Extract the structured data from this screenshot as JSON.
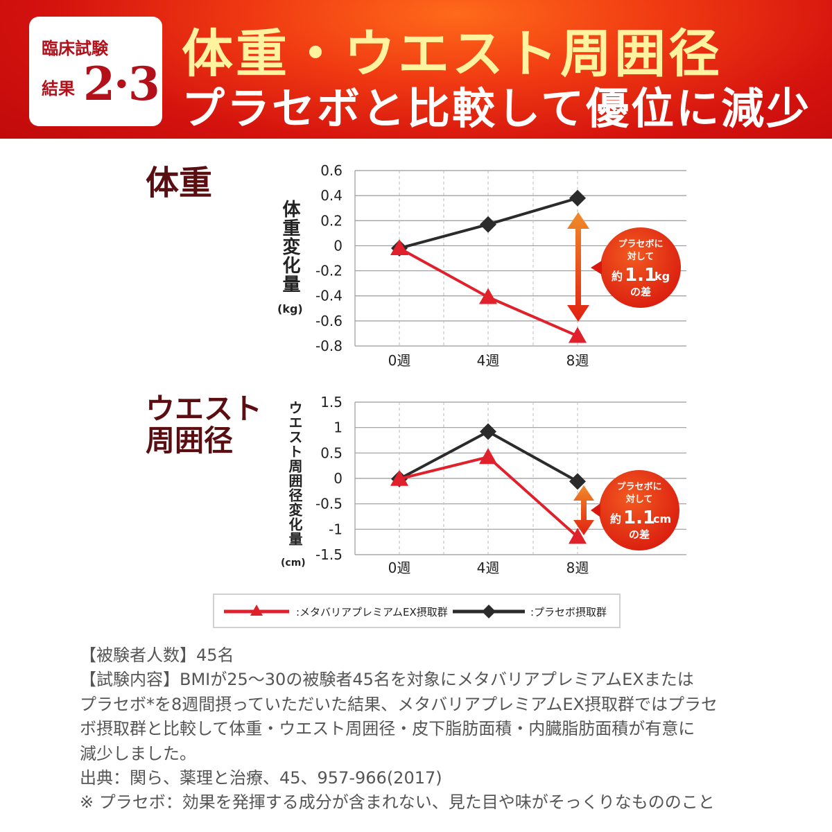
{
  "banner": {
    "badge_line1": "臨床試験",
    "badge_line2": "結果",
    "badge_number": "2·3",
    "headline_line1": "体重・ウエスト周囲径",
    "headline_line2": "プラセボと比較して優位に減少"
  },
  "colors": {
    "banner": "#d4120e",
    "metabarrier": "#e0202a",
    "placebo": "#2b2b2b",
    "callout": "#e8381a",
    "title": "#5a0e12"
  },
  "weight_section": {
    "title": "体重",
    "ylabel": "体重変化量",
    "unit": "(kg)",
    "callout": {
      "line1": "プラセボに",
      "line2": "対して",
      "prefix": "約",
      "value": "1.1",
      "unit": "kg",
      "suffix": "の差"
    }
  },
  "waist_section": {
    "title_line1": "ウエスト",
    "title_line2": "周囲径",
    "ylabel": "ウエスト周囲径変化量",
    "unit": "(cm)",
    "callout": {
      "line1": "プラセボに",
      "line2": "対して",
      "prefix": "約",
      "value": "1.1",
      "unit": "cm",
      "suffix": "の差"
    }
  },
  "legend": {
    "metabarrier": ":メタバリアプレミアムEX摂取群",
    "placebo": ":プラセボ摂取群"
  },
  "chart_data": [
    {
      "type": "line",
      "categories": [
        "0週",
        "4週",
        "8週"
      ],
      "ylim": [
        -0.8,
        0.6
      ],
      "yticks": [
        "0.6",
        "0.4",
        "0.2",
        "0",
        "-0.2",
        "-0.4",
        "-0.6",
        "-0.8"
      ],
      "grid": true,
      "series": [
        {
          "name": ":メタバリアプレミアムEX摂取群",
          "values": [
            -0.02,
            -0.41,
            -0.72
          ],
          "marker": "triangle"
        },
        {
          "name": ":プラセボ摂取群",
          "values": [
            -0.02,
            0.17,
            0.38
          ],
          "marker": "diamond"
        }
      ]
    },
    {
      "type": "line",
      "categories": [
        "0週",
        "4週",
        "8週"
      ],
      "ylim": [
        -1.5,
        1.5
      ],
      "yticks": [
        "1.5",
        "1",
        "0.5",
        "0",
        "-0.5",
        "-1",
        "-1.5"
      ],
      "grid": true,
      "series": [
        {
          "name": ":メタバリアプレミアムEX摂取群",
          "values": [
            -0.01,
            0.42,
            -1.15
          ],
          "marker": "triangle"
        },
        {
          "name": ":プラセボ摂取群",
          "values": [
            -0.01,
            0.92,
            -0.06
          ],
          "marker": "diamond"
        }
      ]
    }
  ],
  "notes": [
    "【被験者人数】45名",
    "【試験内容】BMIが25〜30の被験者45名を対象にメタバリアプレミアムEXまたは",
    "プラセボ*を8週間摂っていただいた結果、メタバリアプレミアムEX摂取群ではプラセ",
    "ボ摂取群と比較して体重・ウエスト周囲径・皮下脂肪面積・内臓脂肪面積が有意に",
    "減少しました。",
    "出典：関ら、薬理と治療、45、957-966(2017)",
    "※ プラセボ：効果を発揮する成分が含まれない、見た目や味がそっくりなもののこと"
  ]
}
